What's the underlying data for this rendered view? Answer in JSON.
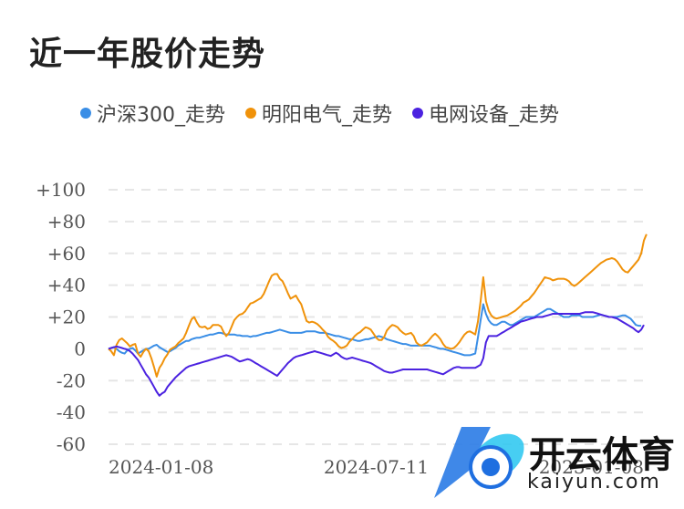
{
  "page": {
    "title": "近一年股价走势"
  },
  "chart_data": {
    "type": "line",
    "title": "近一年股价走势",
    "ylim": [
      -60,
      100
    ],
    "yticks": [
      "+100",
      "+80",
      "+60",
      "+40",
      "+20",
      "0",
      "-20",
      "-40",
      "-60"
    ],
    "ytick_values": [
      100,
      80,
      60,
      40,
      20,
      0,
      -20,
      -40,
      -60
    ],
    "xtick_labels": [
      "2024-01-08",
      "2024-07-11",
      "2025-01-08"
    ],
    "xtick_index": [
      0,
      100,
      200
    ],
    "legend_position": "top",
    "grid": true,
    "n_points": 201,
    "series": [
      {
        "name": "沪深300_走势",
        "color": "#3a8ee6",
        "values": [
          0,
          0.5,
          1,
          0,
          -1.5,
          -2.5,
          -3,
          -1,
          0,
          0.5,
          -1,
          -3,
          -2,
          -1,
          0,
          0,
          1,
          2,
          2.5,
          1,
          0,
          -1,
          -2,
          -1.5,
          -0.5,
          0.5,
          2,
          3,
          4,
          5,
          5,
          6,
          6.5,
          7,
          7,
          7.5,
          8,
          8.5,
          9,
          9,
          9.5,
          10,
          10,
          9.5,
          9,
          9,
          9,
          9,
          8.5,
          8.5,
          8,
          8,
          8,
          7.5,
          8,
          8,
          8.5,
          9,
          9.5,
          10,
          10,
          10.5,
          11,
          11.5,
          12,
          11.5,
          11,
          10.5,
          10,
          10,
          10,
          10,
          10,
          10.5,
          11,
          11,
          11,
          11,
          10.5,
          10,
          10,
          10,
          9.5,
          9,
          8.5,
          8,
          8,
          7.5,
          7,
          6.5,
          6,
          6,
          5.5,
          5,
          5,
          5.5,
          6,
          6,
          6.5,
          7,
          7.5,
          8,
          7.5,
          7,
          6,
          5.5,
          5,
          4.5,
          4,
          3.5,
          3,
          3,
          2.5,
          2,
          2,
          2,
          2,
          2,
          2,
          2,
          2,
          1.5,
          1,
          0.5,
          0,
          0,
          -0.5,
          -1,
          -1.5,
          -2,
          -2.5,
          -3,
          -3.5,
          -4,
          -4,
          -4,
          -3.5,
          -3,
          7,
          18,
          28,
          22,
          18,
          16,
          15,
          15,
          16,
          17,
          17,
          16,
          15,
          15,
          16,
          17,
          18,
          19,
          20,
          20,
          20,
          20,
          21,
          22,
          23,
          24,
          25,
          25,
          24,
          23,
          22,
          21,
          20,
          20,
          20,
          21,
          21,
          21,
          21,
          20,
          20,
          20,
          20,
          20,
          20.5,
          21,
          21.5,
          21,
          20.5,
          20,
          20,
          20,
          20,
          20.5,
          21,
          21,
          20,
          19,
          17,
          15,
          14.5,
          14.5
        ]
      },
      {
        "name": "明阳电气_走势",
        "color": "#f0920a",
        "values": [
          0,
          -1.5,
          -4,
          2.5,
          5.5,
          6.5,
          5,
          3.5,
          1.5,
          2.5,
          3,
          -3,
          -5,
          -2,
          0,
          -1.5,
          -6,
          -11.5,
          -17.5,
          -12,
          -9.5,
          -6,
          -3.5,
          -0.5,
          0.5,
          1.5,
          3.5,
          5,
          6.5,
          10,
          14.5,
          18.5,
          20,
          16.5,
          14,
          13.5,
          14,
          12.5,
          13,
          15,
          15,
          15,
          14,
          10.5,
          8,
          10,
          14,
          18,
          20,
          21.5,
          22,
          23.5,
          26,
          28.5,
          29,
          30,
          31,
          32,
          34.5,
          38.5,
          42.5,
          46,
          47,
          47,
          44,
          42.5,
          39,
          35,
          31.5,
          32.5,
          33.5,
          30.5,
          28,
          22.5,
          17.5,
          16.5,
          17,
          16.5,
          15.5,
          14,
          12,
          10.5,
          7.5,
          6,
          5,
          3.5,
          1.5,
          0.5,
          1,
          2,
          4.5,
          6,
          8,
          9.5,
          10.5,
          12,
          13.5,
          13,
          12,
          9.5,
          7,
          5.5,
          5.5,
          7.5,
          11.5,
          13.5,
          15,
          14.5,
          13.5,
          11.5,
          10,
          9,
          9.5,
          10,
          8,
          4,
          2.5,
          2,
          3,
          4,
          6,
          8,
          9.5,
          8,
          6,
          3,
          1,
          0.5,
          0,
          0.5,
          2,
          4,
          6.5,
          9,
          10.5,
          11,
          10,
          9,
          17,
          30,
          45,
          30,
          24,
          21,
          19.5,
          19,
          19.5,
          20,
          20.5,
          21,
          22,
          23,
          24,
          25.5,
          27,
          29,
          30,
          31,
          33,
          35,
          37.5,
          40,
          42.5,
          45,
          44.5,
          44,
          43,
          43.5,
          44,
          44,
          44,
          43.5,
          42.5,
          40.5,
          39.5,
          40.5,
          42,
          43.5,
          45,
          46.5,
          48,
          49.5,
          51,
          52.5,
          54,
          55,
          56,
          56.5,
          57,
          56.5,
          55,
          52.5,
          50,
          48.5,
          48,
          50,
          52,
          54,
          56,
          60,
          68,
          72
        ]
      },
      {
        "name": "电网设备_走势",
        "color": "#4b22e0",
        "values": [
          0,
          0.5,
          1,
          1.5,
          1,
          0.5,
          0,
          -0.5,
          -1.5,
          -3,
          -5,
          -7,
          -10,
          -13,
          -16,
          -18,
          -21,
          -24,
          -27,
          -29.5,
          -28,
          -27,
          -24,
          -22,
          -20,
          -18,
          -16.5,
          -15,
          -13.5,
          -12,
          -11,
          -10.5,
          -10,
          -9.5,
          -9,
          -8.5,
          -8,
          -7.5,
          -7,
          -6.5,
          -6,
          -5.5,
          -5,
          -4.5,
          -4,
          -4.5,
          -5,
          -6,
          -7,
          -8,
          -7.5,
          -7,
          -6.5,
          -7,
          -8,
          -9,
          -10,
          -11,
          -12,
          -13,
          -14,
          -15,
          -16,
          -17,
          -15,
          -13,
          -11,
          -9,
          -7.5,
          -6,
          -5,
          -4.5,
          -4,
          -3.5,
          -3,
          -2.5,
          -2,
          -1.5,
          -2,
          -2.5,
          -3,
          -3.5,
          -4,
          -4.5,
          -3.5,
          -2.5,
          -3.5,
          -5,
          -6,
          -6.5,
          -6,
          -5.5,
          -6,
          -6.5,
          -7,
          -7.5,
          -8,
          -8.5,
          -9,
          -10,
          -11,
          -12,
          -13,
          -14,
          -14.5,
          -15,
          -15,
          -14.5,
          -14,
          -13.5,
          -13,
          -13,
          -13,
          -13,
          -13,
          -13,
          -13,
          -13,
          -13,
          -13,
          -13.5,
          -14,
          -14.5,
          -15,
          -15.5,
          -16,
          -15,
          -14,
          -13,
          -12,
          -11.5,
          -11.5,
          -12,
          -12,
          -12,
          -12,
          -12,
          -12,
          -11,
          -10,
          -6,
          4,
          8,
          8,
          8,
          8,
          9,
          10,
          11,
          12,
          13,
          14,
          15,
          16,
          17,
          17.5,
          18,
          18.5,
          19,
          19.5,
          20,
          20,
          20,
          20.5,
          21,
          21.5,
          22,
          22,
          22,
          22,
          22,
          22,
          22,
          22,
          22,
          22,
          22,
          22.5,
          23,
          23,
          23,
          23,
          22.5,
          22,
          21.5,
          21,
          20.5,
          20,
          20,
          19.5,
          19,
          18,
          17,
          16,
          15,
          14,
          13,
          11.5,
          10.5,
          12,
          15
        ]
      }
    ]
  },
  "watermark": {
    "brand": "开云体育",
    "domain": "kaiyun.com",
    "colors": {
      "primary": "#1f6fe0",
      "secondary": "#27c6f0"
    }
  }
}
